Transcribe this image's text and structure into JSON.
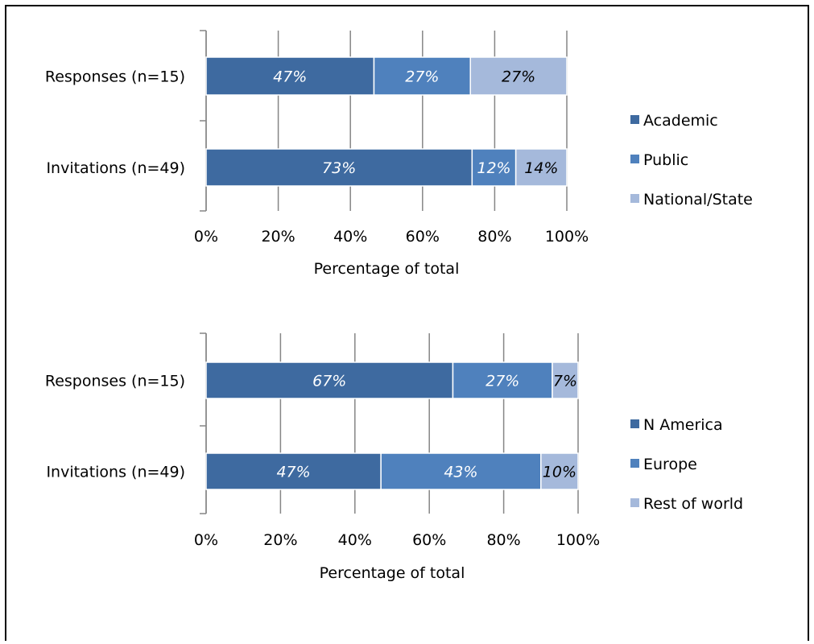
{
  "chart_data": [
    {
      "type": "bar",
      "orientation": "horizontal",
      "stacked": "percent",
      "categories": [
        "Responses (n=15)",
        "Invitations (n=49)"
      ],
      "series": [
        {
          "name": "Academic",
          "color": "#3E6AA0",
          "values": [
            47,
            73
          ],
          "labels": [
            "47%",
            "73%"
          ]
        },
        {
          "name": "Public",
          "color": "#4F81BD",
          "values": [
            27,
            12
          ],
          "labels": [
            "27%",
            "12%"
          ]
        },
        {
          "name": "National/State",
          "color": "#A5B9DB",
          "values": [
            27,
            14
          ],
          "labels": [
            "27%",
            "14%"
          ]
        }
      ],
      "xlabel": "Percentage of total",
      "xlim": [
        0,
        100
      ],
      "xticks": [
        "0%",
        "20%",
        "40%",
        "60%",
        "80%",
        "100%"
      ],
      "grid": true,
      "legend": "right"
    },
    {
      "type": "bar",
      "orientation": "horizontal",
      "stacked": "percent",
      "categories": [
        "Responses (n=15)",
        "Invitations (n=49)"
      ],
      "series": [
        {
          "name": "N America",
          "color": "#3E6AA0",
          "values": [
            67,
            47
          ],
          "labels": [
            "67%",
            "47%"
          ]
        },
        {
          "name": "Europe",
          "color": "#4F81BD",
          "values": [
            27,
            43
          ],
          "labels": [
            "27%",
            "43%"
          ]
        },
        {
          "name": "Rest of world",
          "color": "#A5B9DB",
          "values": [
            7,
            10
          ],
          "labels": [
            "7%",
            "10%"
          ]
        }
      ],
      "xlabel": "Percentage of total",
      "xlim": [
        0,
        100
      ],
      "xticks": [
        "0%",
        "20%",
        "40%",
        "60%",
        "80%",
        "100%"
      ],
      "grid": true,
      "legend": "right"
    }
  ]
}
